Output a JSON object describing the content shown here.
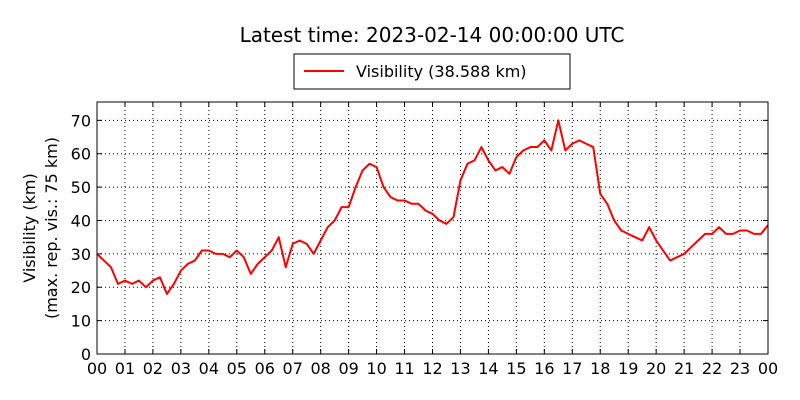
{
  "chart_data": {
    "type": "line",
    "title": "Latest time: 2023-02-14 00:00:00 UTC",
    "ylabel": "Visibility (km)",
    "ylabel2": "(max. rep. vis.: 75 km)",
    "xlim": [
      0,
      24
    ],
    "ylim": [
      0,
      75.5
    ],
    "yticks": [
      0,
      10,
      20,
      30,
      40,
      50,
      60,
      70
    ],
    "xticks": [
      {
        "value": 0,
        "label": "00"
      },
      {
        "value": 1,
        "label": "01"
      },
      {
        "value": 2,
        "label": "02"
      },
      {
        "value": 3,
        "label": "03"
      },
      {
        "value": 4,
        "label": "04"
      },
      {
        "value": 5,
        "label": "05"
      },
      {
        "value": 6,
        "label": "06"
      },
      {
        "value": 7,
        "label": "07"
      },
      {
        "value": 8,
        "label": "08"
      },
      {
        "value": 9,
        "label": "09"
      },
      {
        "value": 10,
        "label": "10"
      },
      {
        "value": 11,
        "label": "11"
      },
      {
        "value": 12,
        "label": "12"
      },
      {
        "value": 13,
        "label": "13"
      },
      {
        "value": 14,
        "label": "14"
      },
      {
        "value": 15,
        "label": "15"
      },
      {
        "value": 16,
        "label": "16"
      },
      {
        "value": 17,
        "label": "17"
      },
      {
        "value": 18,
        "label": "18"
      },
      {
        "value": 19,
        "label": "19"
      },
      {
        "value": 20,
        "label": "20"
      },
      {
        "value": 21,
        "label": "21"
      },
      {
        "value": 22,
        "label": "22"
      },
      {
        "value": 23,
        "label": "23"
      },
      {
        "value": 24,
        "label": "00"
      }
    ],
    "grid": true,
    "legend": "top",
    "series": [
      {
        "name": "Visibility (38.588 km)",
        "color": "#ff0000",
        "x": [
          0,
          0.25,
          0.5,
          0.75,
          1,
          1.25,
          1.5,
          1.75,
          2,
          2.25,
          2.5,
          2.75,
          3,
          3.25,
          3.5,
          3.75,
          4,
          4.25,
          4.5,
          4.75,
          5,
          5.25,
          5.5,
          5.75,
          6,
          6.25,
          6.5,
          6.75,
          7,
          7.25,
          7.5,
          7.75,
          8,
          8.25,
          8.5,
          8.75,
          9,
          9.25,
          9.5,
          9.75,
          10,
          10.25,
          10.5,
          10.75,
          11,
          11.25,
          11.5,
          11.75,
          12,
          12.25,
          12.5,
          12.75,
          13,
          13.25,
          13.5,
          13.75,
          14,
          14.25,
          14.5,
          14.75,
          15,
          15.25,
          15.5,
          15.75,
          16,
          16.25,
          16.5,
          16.75,
          17,
          17.25,
          17.5,
          17.75,
          18,
          18.25,
          18.5,
          18.75,
          19,
          19.25,
          19.5,
          19.75,
          20,
          20.25,
          20.5,
          20.75,
          21,
          21.25,
          21.5,
          21.75,
          22,
          22.25,
          22.5,
          22.75,
          23,
          23.25,
          23.5,
          23.75,
          24
        ],
        "values": [
          30,
          28,
          26,
          21,
          22,
          21,
          22,
          20,
          22,
          23,
          18,
          21,
          25,
          27,
          28,
          31,
          31,
          30,
          30,
          29,
          31,
          29,
          24,
          27,
          29,
          31,
          35,
          26,
          33,
          34,
          33,
          30,
          34,
          38,
          40,
          44,
          44,
          50,
          55,
          57,
          56,
          50,
          47,
          46,
          46,
          45,
          45,
          43,
          42,
          40,
          39,
          41,
          52,
          57,
          58,
          62,
          58,
          55,
          56,
          54,
          59,
          61,
          62,
          62,
          64,
          61,
          70,
          61,
          63,
          64,
          63,
          62,
          48,
          45,
          40,
          37,
          36,
          35,
          34,
          38,
          34,
          31,
          28,
          29,
          30,
          32,
          34,
          36,
          36,
          38,
          36,
          36,
          37,
          37,
          36,
          36,
          38.6
        ]
      }
    ]
  }
}
